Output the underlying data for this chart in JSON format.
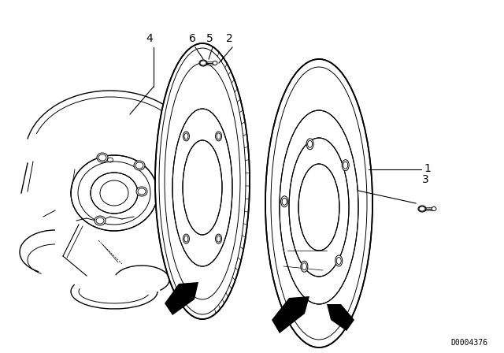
{
  "background_color": "#ffffff",
  "line_color": "#000000",
  "image_id": "D0004376",
  "figsize": [
    6.4,
    4.48
  ],
  "dpi": 100,
  "label_fontsize": 10,
  "id_fontsize": 7
}
